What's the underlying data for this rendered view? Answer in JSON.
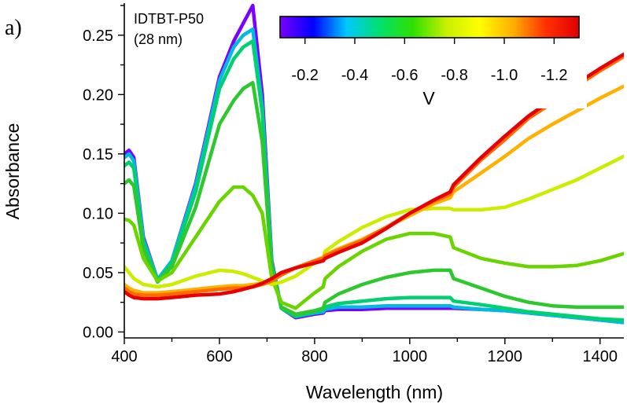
{
  "panel_label": "a)",
  "annotation": {
    "line1": "IDTBT-P50",
    "line2": "(28 nm)"
  },
  "colorbar": {
    "ticks": [
      "-0.2",
      "-0.4",
      "-0.6",
      "-0.8",
      "-1.0",
      "-1.2"
    ],
    "tick_values": [
      -0.2,
      -0.4,
      -0.6,
      -0.8,
      -1.0,
      -1.2
    ],
    "range": [
      -0.1,
      -1.3
    ],
    "label": "V",
    "gradient_colors": [
      "#7a00ff",
      "#0000ff",
      "#00c8ff",
      "#00e06e",
      "#2ee000",
      "#c8f000",
      "#ffff00",
      "#ffb000",
      "#ff3000",
      "#e00000"
    ]
  },
  "chart_data": {
    "type": "line",
    "title": "",
    "xlabel": "Wavelength (nm)",
    "ylabel": "Absorbance",
    "xlim": [
      400,
      1450
    ],
    "ylim": [
      -0.005,
      0.277
    ],
    "xticks": [
      400,
      600,
      800,
      1000,
      1200,
      1400
    ],
    "yticks": [
      0.0,
      0.05,
      0.1,
      0.15,
      0.2,
      0.25
    ],
    "ytick_labels": [
      "0.00",
      "0.05",
      "0.10",
      "0.15",
      "0.20",
      "0.25"
    ],
    "legend": "colorbar top-right",
    "grid": false,
    "x": [
      400,
      410,
      420,
      440,
      470,
      500,
      550,
      600,
      630,
      650,
      670,
      690,
      710,
      730,
      760,
      800,
      818,
      822,
      850,
      900,
      950,
      1000,
      1050,
      1085,
      1092,
      1150,
      1200,
      1250,
      1300,
      1350,
      1400,
      1450
    ],
    "series": [
      {
        "color": "#7a00ff",
        "values": [
          0.15,
          0.153,
          0.147,
          0.08,
          0.044,
          0.06,
          0.125,
          0.215,
          0.245,
          0.26,
          0.275,
          0.2,
          0.06,
          0.02,
          0.012,
          0.015,
          0.016,
          0.018,
          0.019,
          0.019,
          0.02,
          0.02,
          0.02,
          0.02,
          0.02,
          0.019,
          0.018,
          0.016,
          0.014,
          0.012,
          0.01,
          0.008
        ]
      },
      {
        "color": "#00bbe0",
        "values": [
          0.147,
          0.15,
          0.144,
          0.078,
          0.044,
          0.06,
          0.123,
          0.212,
          0.24,
          0.25,
          0.255,
          0.19,
          0.058,
          0.02,
          0.013,
          0.016,
          0.017,
          0.019,
          0.021,
          0.021,
          0.022,
          0.022,
          0.022,
          0.022,
          0.021,
          0.019,
          0.018,
          0.016,
          0.014,
          0.012,
          0.01,
          0.008
        ]
      },
      {
        "color": "#00d070",
        "values": [
          0.14,
          0.143,
          0.138,
          0.075,
          0.043,
          0.058,
          0.118,
          0.205,
          0.23,
          0.24,
          0.245,
          0.185,
          0.057,
          0.02,
          0.013,
          0.017,
          0.019,
          0.021,
          0.024,
          0.026,
          0.028,
          0.029,
          0.029,
          0.029,
          0.026,
          0.023,
          0.02,
          0.017,
          0.015,
          0.013,
          0.011,
          0.01
        ]
      },
      {
        "color": "#2ec82e",
        "values": [
          0.125,
          0.128,
          0.123,
          0.07,
          0.042,
          0.055,
          0.105,
          0.175,
          0.195,
          0.205,
          0.21,
          0.16,
          0.052,
          0.021,
          0.015,
          0.018,
          0.02,
          0.025,
          0.032,
          0.04,
          0.046,
          0.05,
          0.052,
          0.052,
          0.045,
          0.037,
          0.03,
          0.025,
          0.022,
          0.021,
          0.021,
          0.021
        ]
      },
      {
        "color": "#6ad400",
        "values": [
          0.095,
          0.094,
          0.09,
          0.062,
          0.043,
          0.05,
          0.08,
          0.11,
          0.122,
          0.122,
          0.115,
          0.1,
          0.045,
          0.025,
          0.02,
          0.033,
          0.038,
          0.045,
          0.055,
          0.068,
          0.078,
          0.083,
          0.083,
          0.08,
          0.071,
          0.062,
          0.058,
          0.055,
          0.055,
          0.056,
          0.06,
          0.066
        ]
      },
      {
        "color": "#ccec00",
        "values": [
          0.055,
          0.05,
          0.045,
          0.04,
          0.038,
          0.04,
          0.047,
          0.052,
          0.051,
          0.049,
          0.046,
          0.043,
          0.04,
          0.042,
          0.047,
          0.058,
          0.062,
          0.068,
          0.076,
          0.088,
          0.097,
          0.103,
          0.104,
          0.104,
          0.103,
          0.103,
          0.105,
          0.112,
          0.12,
          0.128,
          0.138,
          0.148
        ]
      },
      {
        "color": "#ffb000",
        "values": [
          0.04,
          0.037,
          0.035,
          0.033,
          0.033,
          0.034,
          0.036,
          0.038,
          0.039,
          0.039,
          0.04,
          0.041,
          0.043,
          0.048,
          0.054,
          0.06,
          0.063,
          0.065,
          0.07,
          0.078,
          0.088,
          0.098,
          0.108,
          0.113,
          0.118,
          0.134,
          0.148,
          0.163,
          0.175,
          0.186,
          0.197,
          0.207
        ]
      },
      {
        "color": "#ff6a00",
        "values": [
          0.037,
          0.034,
          0.032,
          0.031,
          0.031,
          0.032,
          0.034,
          0.036,
          0.037,
          0.037,
          0.038,
          0.04,
          0.043,
          0.048,
          0.054,
          0.06,
          0.062,
          0.064,
          0.069,
          0.077,
          0.088,
          0.1,
          0.11,
          0.116,
          0.122,
          0.145,
          0.162,
          0.18,
          0.193,
          0.207,
          0.22,
          0.232
        ]
      },
      {
        "color": "#e60000",
        "values": [
          0.034,
          0.031,
          0.029,
          0.028,
          0.028,
          0.029,
          0.031,
          0.032,
          0.034,
          0.036,
          0.038,
          0.041,
          0.045,
          0.05,
          0.054,
          0.058,
          0.06,
          0.062,
          0.067,
          0.075,
          0.087,
          0.1,
          0.111,
          0.118,
          0.124,
          0.147,
          0.165,
          0.182,
          0.196,
          0.209,
          0.222,
          0.234
        ]
      }
    ]
  }
}
